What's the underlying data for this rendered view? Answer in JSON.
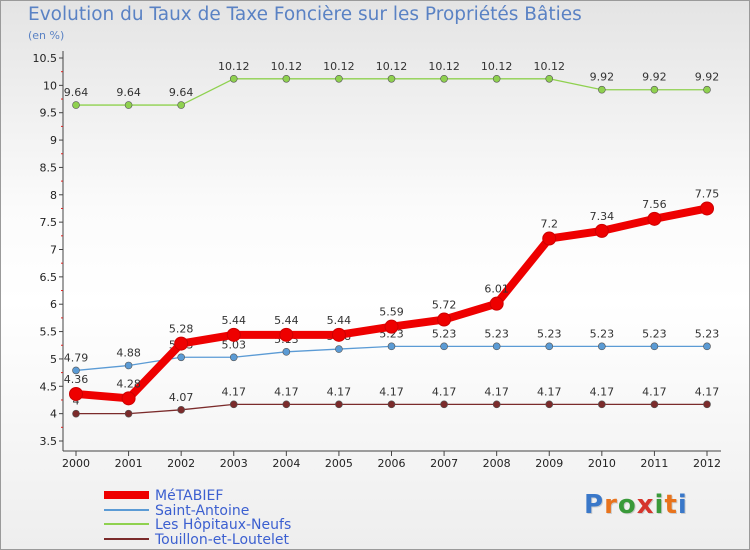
{
  "title": "Evolution du Taux de Taxe Foncière sur les Propriétés Bâties",
  "unit": "(en %)",
  "logo": {
    "letters": [
      "P",
      "r",
      "o",
      "x",
      "i",
      "t",
      "i"
    ],
    "colors": [
      "#3a78c9",
      "#e8731c",
      "#3a9a3a",
      "#d6352c",
      "#3a9a3a",
      "#e8731c",
      "#3a78c9"
    ]
  },
  "chart_data": {
    "type": "line",
    "categories": [
      "2000",
      "2001",
      "2002",
      "2003",
      "2004",
      "2005",
      "2006",
      "2007",
      "2008",
      "2009",
      "2010",
      "2011",
      "2012"
    ],
    "ylim": [
      3.5,
      10.5
    ],
    "yticks": [
      "3.5",
      "4",
      "4.5",
      "5",
      "5.5",
      "6",
      "6.5",
      "7",
      "7.5",
      "8",
      "8.5",
      "9",
      "9.5",
      "10",
      "10.5"
    ],
    "grid": false,
    "legend_position": "bottom-left",
    "series": [
      {
        "name": "MéTABIEF",
        "color": "#ee0000",
        "values": [
          4.36,
          4.28,
          5.28,
          5.44,
          5.44,
          5.44,
          5.59,
          5.72,
          6.01,
          7.2,
          7.34,
          7.56,
          7.75
        ],
        "labels": [
          "4.36",
          "4.28",
          "5.28",
          "5.44",
          "5.44",
          "5.44",
          "5.59",
          "5.72",
          "6.01",
          "7.2",
          "7.34",
          "7.56",
          "7.75"
        ]
      },
      {
        "name": "Saint-Antoine",
        "color": "#5b9bd5",
        "values": [
          4.79,
          4.88,
          5.03,
          5.03,
          5.13,
          5.18,
          5.23,
          5.23,
          5.23,
          5.23,
          5.23,
          5.23,
          5.23
        ],
        "labels": [
          "4.79",
          "4.88",
          "5.03",
          "5.03",
          "5.13",
          "5.18",
          "5.23",
          "5.23",
          "5.23",
          "5.23",
          "5.23",
          "5.23",
          "5.23"
        ]
      },
      {
        "name": "Les Hôpitaux-Neufs",
        "color": "#8fd14f",
        "values": [
          9.64,
          9.64,
          9.64,
          10.12,
          10.12,
          10.12,
          10.12,
          10.12,
          10.12,
          10.12,
          9.92,
          9.92,
          9.92
        ],
        "labels": [
          "9.64",
          "9.64",
          "9.64",
          "10.12",
          "10.12",
          "10.12",
          "10.12",
          "10.12",
          "10.12",
          "10.12",
          "9.92",
          "9.92",
          "9.92"
        ]
      },
      {
        "name": "Touillon-et-Loutelet",
        "color": "#7b2b2b",
        "values": [
          4,
          4,
          4.07,
          4.17,
          4.17,
          4.17,
          4.17,
          4.17,
          4.17,
          4.17,
          4.17,
          4.17,
          4.17
        ],
        "labels": [
          "4",
          "4",
          "4.07",
          "4.17",
          "4.17",
          "4.17",
          "4.17",
          "4.17",
          "4.17",
          "4.17",
          "4.17",
          "4.17",
          "4.17"
        ]
      }
    ]
  }
}
